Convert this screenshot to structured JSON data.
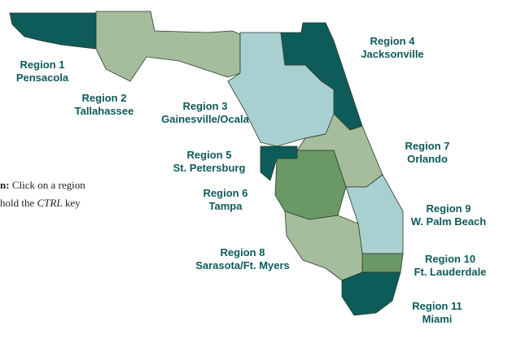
{
  "regions": [
    {
      "name": "Region 1",
      "city": "Pensacola"
    },
    {
      "name": "Region 2",
      "city": "Tallahassee"
    },
    {
      "name": "Region 3",
      "city": "Gainesville/Ocala"
    },
    {
      "name": "Region 4",
      "city": "Jacksonville"
    },
    {
      "name": "Region 5",
      "city": "St. Petersburg"
    },
    {
      "name": "Region 6",
      "city": "Tampa"
    },
    {
      "name": "Region 7",
      "city": "Orlando"
    },
    {
      "name": "Region 8",
      "city": "Sarasota/Ft. Myers"
    },
    {
      "name": "Region 9",
      "city": "W. Palm Beach"
    },
    {
      "name": "Region 10",
      "city": "Ft. Lauderdale"
    },
    {
      "name": "Region 11",
      "city": "Miami"
    }
  ],
  "instructions": {
    "line1": {
      "bold": "n:",
      "text": "Click on a region"
    },
    "line2": {
      "before": "hold the",
      "italic": "CTRL",
      "after": "key"
    }
  }
}
